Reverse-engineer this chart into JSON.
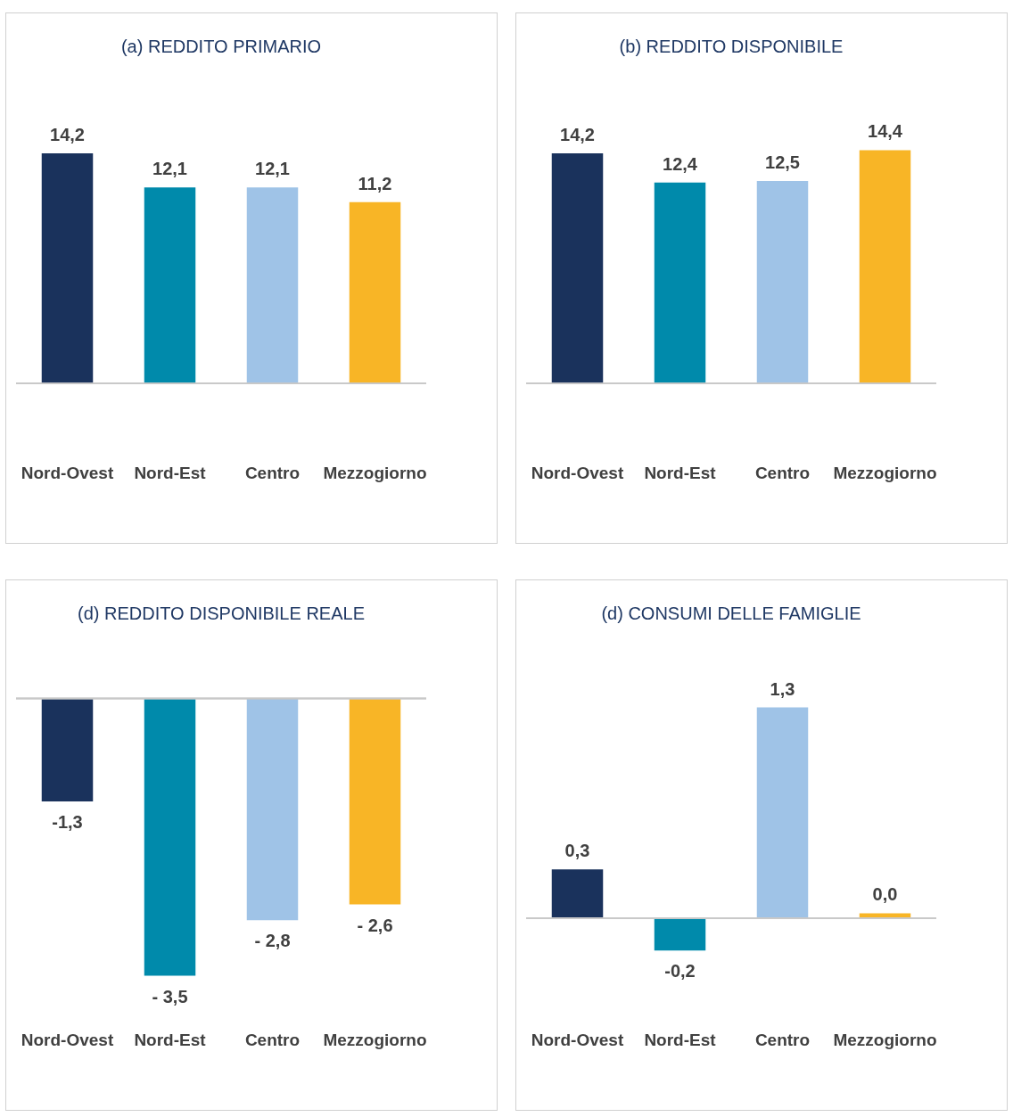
{
  "chart_data": [
    {
      "type": "bar",
      "title": "(a) REDDITO PRIMARIO",
      "categories": [
        "Nord-Ovest",
        "Nord-Est",
        "Centro",
        "Mezzogiorno"
      ],
      "values": [
        14.2,
        12.1,
        12.1,
        11.2
      ],
      "value_labels": [
        "14,2",
        "12,1",
        "12,1",
        "11,2"
      ],
      "colors": [
        "#1a325c",
        "#008aab",
        "#9fc3e7",
        "#f8b526"
      ],
      "tick_labels": "x"
    },
    {
      "type": "bar",
      "title": "(b) REDDITO DISPONIBILE",
      "categories": [
        "Nord-Ovest",
        "Nord-Est",
        "Centro",
        "Mezzogiorno"
      ],
      "values": [
        14.2,
        12.4,
        12.5,
        14.4
      ],
      "value_labels": [
        "14,2",
        "12,4",
        "12,5",
        "14,4"
      ],
      "colors": [
        "#1a325c",
        "#008aab",
        "#9fc3e7",
        "#f8b526"
      ],
      "tick_labels": "x"
    },
    {
      "type": "bar",
      "title": "(d) REDDITO DISPONIBILE REALE",
      "categories": [
        "Nord-Ovest",
        "Nord-Est",
        "Centro",
        "Mezzogiorno"
      ],
      "values": [
        -1.3,
        -3.5,
        -2.8,
        -2.6
      ],
      "value_labels": [
        "-1,3",
        "- 3,5",
        "- 2,8",
        "- 2,6"
      ],
      "colors": [
        "#1a325c",
        "#008aab",
        "#9fc3e7",
        "#f8b526"
      ],
      "tick_labels": "x"
    },
    {
      "type": "bar",
      "title": "(d) CONSUMI DELLE FAMIGLIE",
      "categories": [
        "Nord-Ovest",
        "Nord-Est",
        "Centro",
        "Mezzogiorno"
      ],
      "values": [
        0.3,
        -0.2,
        1.3,
        0.03
      ],
      "value_labels": [
        "0,3",
        "-0,2",
        "1,3",
        "0,0"
      ],
      "colors": [
        "#1a325c",
        "#008aab",
        "#9fc3e7",
        "#f8b526"
      ],
      "tick_labels": "x"
    }
  ]
}
